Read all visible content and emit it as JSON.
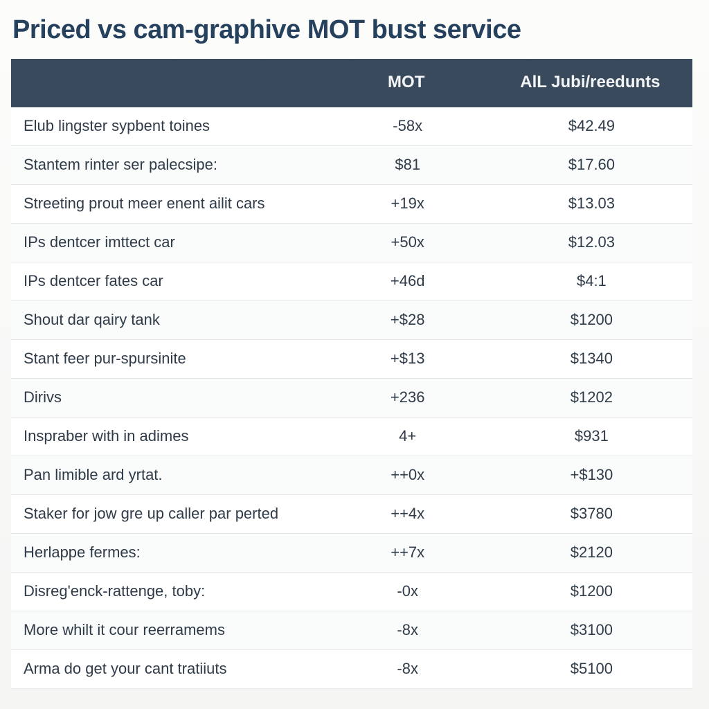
{
  "title": "Priced vs cam-graphive MOT bust service",
  "table": {
    "type": "table",
    "background_color": "#ffffff",
    "header_bg": "#3a4a5d",
    "header_fg": "#f3f5f7",
    "row_border_color": "#e6e8ea",
    "row_bg_even": "#fafbfb",
    "row_bg_odd": "#ffffff",
    "title_color": "#26415d",
    "title_fontsize": 38,
    "body_fontsize": 22,
    "header_fontsize": 24,
    "columns": [
      {
        "key": "label",
        "header": "",
        "width_pct": 46,
        "align": "left"
      },
      {
        "key": "mot",
        "header": "MOT",
        "width_pct": 24,
        "align": "center"
      },
      {
        "key": "all",
        "header": "AlL Jubi/reedunts",
        "width_pct": 30,
        "align": "center"
      }
    ],
    "rows": [
      {
        "label": "Elub lingster sypbent toines",
        "mot": "-58x",
        "all": "$42.49"
      },
      {
        "label": "Stantem rinter ser palecsipe:",
        "mot": "$81",
        "all": "$17.60"
      },
      {
        "label": "Streeting prout meer enent ailit cars",
        "mot": "+19x",
        "all": "$13.03"
      },
      {
        "label": "IPs dentcer imttect car",
        "mot": "+50x",
        "all": "$12.03"
      },
      {
        "label": "IPs dentcer fates car",
        "mot": "+46d",
        "all": "$4:1"
      },
      {
        "label": "Shout dar qairy tank",
        "mot": "+$28",
        "all": "$1200"
      },
      {
        "label": "Stant feer pur-spursinite",
        "mot": "+$13",
        "all": "$1340"
      },
      {
        "label": "Dirivs",
        "mot": "+236",
        "all": "$1202"
      },
      {
        "label": "Inspraber with in adimes",
        "mot": "4+",
        "all": "$931"
      },
      {
        "label": "Pan limible ard yrtat.",
        "mot": "++0x",
        "all": "+$130"
      },
      {
        "label": "Staker for jow gre up caller par perted",
        "mot": "++4x",
        "all": "$3780"
      },
      {
        "label": "Herlappe fermes:",
        "mot": "++7x",
        "all": "$2120"
      },
      {
        "label": "Disreg'enck-rattenge, toby:",
        "mot": "-0x",
        "all": "$1200"
      },
      {
        "label": "More whilt it cour reerramems",
        "mot": "-8x",
        "all": "$3100"
      },
      {
        "label": "Arma do get your cant tratiiuts",
        "mot": "-8x",
        "all": "$5100"
      }
    ]
  }
}
